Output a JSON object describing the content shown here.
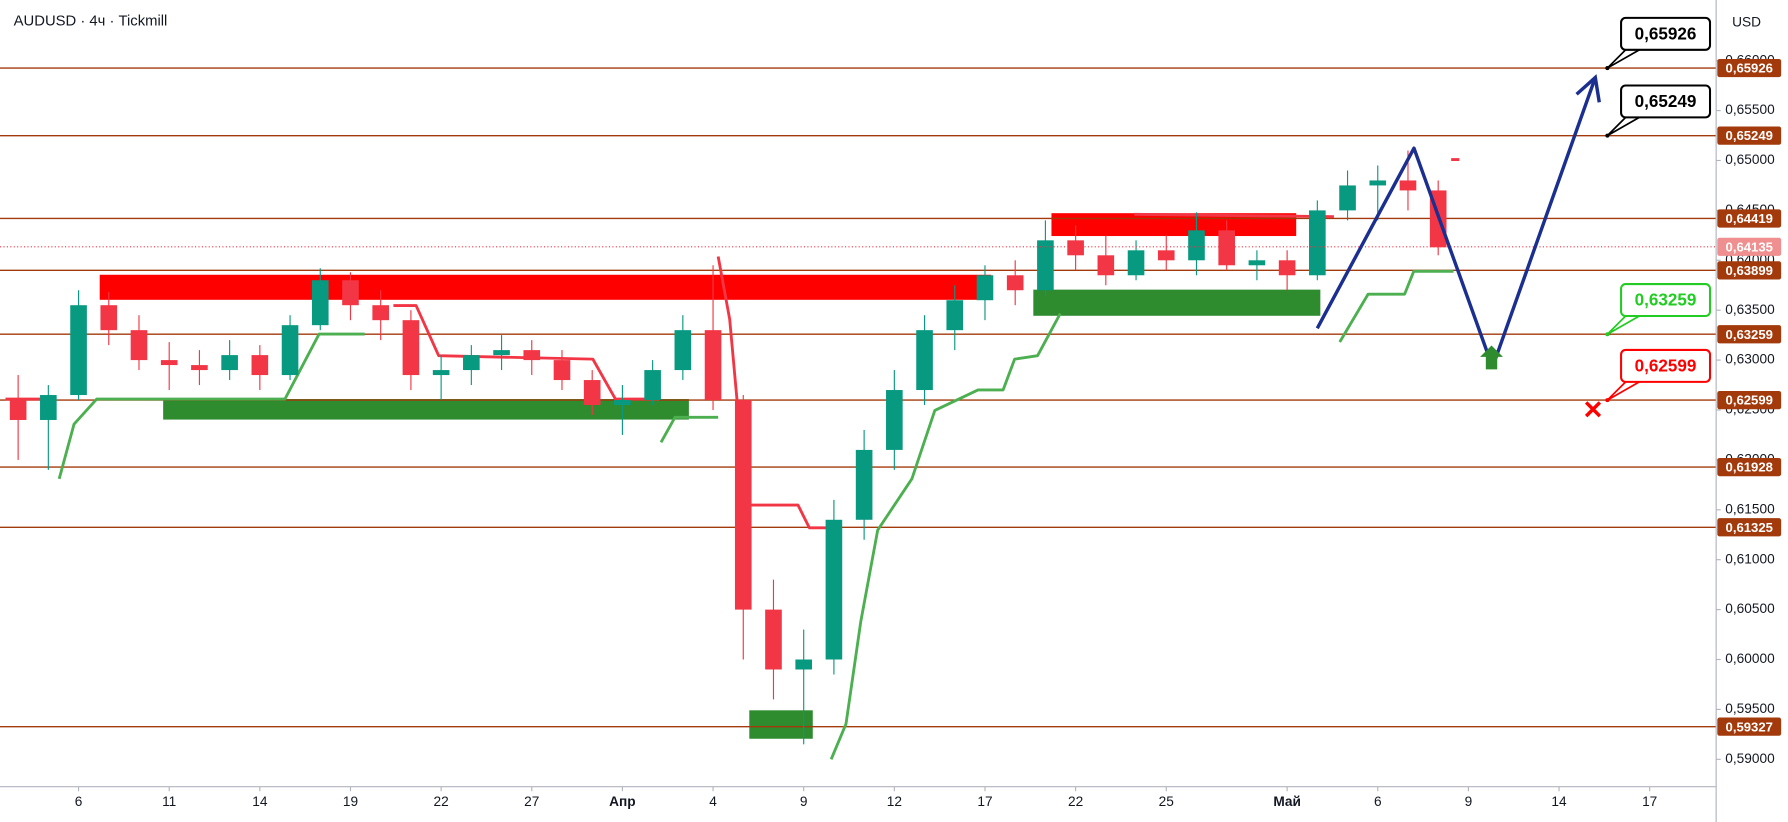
{
  "chart_data": {
    "type": "candlestick",
    "title": "AUDUSD · 4ч · Tickmill",
    "currency": "USD",
    "up_color": "#089981",
    "down_color": "#f23645",
    "x": [
      -2,
      -1,
      0,
      1,
      2,
      3,
      4,
      5,
      6,
      7,
      8,
      9,
      10,
      11,
      12,
      13,
      14,
      15,
      16,
      17,
      18,
      19,
      20,
      21,
      22,
      23,
      24,
      25,
      26,
      27,
      28,
      29,
      30,
      31,
      32,
      33,
      34,
      35,
      36,
      37,
      38,
      39,
      40,
      41,
      42,
      43,
      44,
      45
    ],
    "open": [
      0.6262,
      0.624,
      0.6265,
      0.6355,
      0.633,
      0.63,
      0.6295,
      0.629,
      0.6305,
      0.6285,
      0.6335,
      0.638,
      0.6355,
      0.634,
      0.6285,
      0.629,
      0.6305,
      0.631,
      0.63,
      0.628,
      0.6255,
      0.626,
      0.629,
      0.633,
      0.626,
      0.605,
      0.599,
      0.6,
      0.614,
      0.621,
      0.627,
      0.633,
      0.636,
      0.6385,
      0.637,
      0.642,
      0.6405,
      0.6385,
      0.641,
      0.64,
      0.643,
      0.6395,
      0.64,
      0.6385,
      0.645,
      0.6475,
      0.648,
      0.647
    ],
    "high": [
      0.6285,
      0.6275,
      0.637,
      0.6368,
      0.6345,
      0.6318,
      0.631,
      0.632,
      0.6315,
      0.6345,
      0.6392,
      0.6388,
      0.637,
      0.635,
      0.6305,
      0.6315,
      0.6325,
      0.632,
      0.631,
      0.629,
      0.6275,
      0.63,
      0.6345,
      0.6395,
      0.6265,
      0.608,
      0.603,
      0.616,
      0.623,
      0.629,
      0.6345,
      0.6375,
      0.6395,
      0.64,
      0.644,
      0.6435,
      0.6425,
      0.642,
      0.6425,
      0.6448,
      0.644,
      0.641,
      0.641,
      0.646,
      0.649,
      0.6495,
      0.651,
      0.648
    ],
    "low": [
      0.62,
      0.619,
      0.626,
      0.6315,
      0.629,
      0.627,
      0.6275,
      0.628,
      0.627,
      0.628,
      0.633,
      0.634,
      0.632,
      0.627,
      0.626,
      0.6275,
      0.629,
      0.6285,
      0.627,
      0.6245,
      0.6225,
      0.6255,
      0.628,
      0.625,
      0.6,
      0.596,
      0.5915,
      0.5985,
      0.612,
      0.619,
      0.6255,
      0.631,
      0.634,
      0.6355,
      0.6365,
      0.639,
      0.6375,
      0.638,
      0.639,
      0.6385,
      0.639,
      0.638,
      0.637,
      0.638,
      0.644,
      0.644,
      0.645,
      0.6405
    ],
    "close": [
      0.624,
      0.6265,
      0.6355,
      0.633,
      0.63,
      0.6295,
      0.629,
      0.6305,
      0.6285,
      0.6335,
      0.638,
      0.6355,
      0.634,
      0.6285,
      0.629,
      0.6305,
      0.631,
      0.63,
      0.628,
      0.6255,
      0.626,
      0.629,
      0.633,
      0.626,
      0.605,
      0.599,
      0.6,
      0.614,
      0.621,
      0.627,
      0.633,
      0.636,
      0.6385,
      0.637,
      0.642,
      0.6405,
      0.6385,
      0.641,
      0.64,
      0.643,
      0.6395,
      0.64,
      0.6385,
      0.645,
      0.6475,
      0.648,
      0.647,
      0.6413
    ],
    "xlim": [
      -2.6,
      54.2
    ],
    "xticks": [
      {
        "value": 0,
        "label": "6"
      },
      {
        "value": 3,
        "label": "11"
      },
      {
        "value": 6,
        "label": "14"
      },
      {
        "value": 9,
        "label": "19"
      },
      {
        "value": 12,
        "label": "22"
      },
      {
        "value": 15,
        "label": "27"
      },
      {
        "value": 18,
        "label": "Апр"
      },
      {
        "value": 21,
        "label": "4"
      },
      {
        "value": 24,
        "label": "9"
      },
      {
        "value": 27,
        "label": "12"
      },
      {
        "value": 30,
        "label": "17"
      },
      {
        "value": 33,
        "label": "22"
      },
      {
        "value": 36,
        "label": "25"
      },
      {
        "value": 40,
        "label": "Май"
      },
      {
        "value": 43,
        "label": "6"
      },
      {
        "value": 46,
        "label": "9"
      },
      {
        "value": 49,
        "label": "14"
      },
      {
        "value": 52,
        "label": "17"
      }
    ],
    "ylim": [
      0.58726,
      0.66608
    ],
    "yticks": [
      {
        "value": 0.59,
        "label": "0,59000"
      },
      {
        "value": 0.595,
        "label": "0,59500"
      },
      {
        "value": 0.6,
        "label": "0,60000"
      },
      {
        "value": 0.605,
        "label": "0,60500"
      },
      {
        "value": 0.61,
        "label": "0,61000"
      },
      {
        "value": 0.615,
        "label": "0,61500"
      },
      {
        "value": 0.62,
        "label": "0,62000"
      },
      {
        "value": 0.625,
        "label": "0,62500"
      },
      {
        "value": 0.63,
        "label": "0,63000"
      },
      {
        "value": 0.635,
        "label": "0,63500"
      },
      {
        "value": 0.64,
        "label": "0,64000"
      },
      {
        "value": 0.645,
        "label": "0,64500"
      },
      {
        "value": 0.65,
        "label": "0,65000"
      },
      {
        "value": 0.655,
        "label": "0,65500"
      },
      {
        "value": 0.66,
        "label": "0,66000"
      }
    ],
    "levels": {
      "color": "#a33a0c",
      "lines": [
        {
          "value": 0.65926,
          "label": "0,65926"
        },
        {
          "value": 0.65249,
          "label": "0,65249"
        },
        {
          "value": 0.64419,
          "label": "0,64419"
        },
        {
          "value": 0.63899,
          "label": "0,63899"
        },
        {
          "value": 0.63259,
          "label": "0,63259"
        },
        {
          "value": 0.62599,
          "label": "0,62599"
        },
        {
          "value": 0.61928,
          "label": "0,61928"
        },
        {
          "value": 0.61325,
          "label": "0,61325"
        },
        {
          "value": 0.59327,
          "label": "0,59327"
        }
      ]
    },
    "current_price": {
      "value": 0.64135,
      "label": "0,64135",
      "color": "#ef8f8f"
    },
    "zones": [
      {
        "color": "#ff0000",
        "x": [
          0.7,
          30.2
        ],
        "y": [
          0.63604,
          0.63855
        ]
      },
      {
        "color": "#ff0000",
        "x": [
          32.2,
          40.3
        ],
        "y": [
          0.64243,
          0.64472
        ]
      },
      {
        "color": "#2e8b2e",
        "x": [
          2.8,
          20.2
        ],
        "y": [
          0.62404,
          0.6261
        ]
      },
      {
        "color": "#2e8b2e",
        "x": [
          22.2,
          24.3
        ],
        "y": [
          0.59206,
          0.59491
        ]
      },
      {
        "color": "#2e8b2e",
        "x": [
          31.6,
          41.1
        ],
        "y": [
          0.63444,
          0.63706
        ]
      }
    ],
    "supertrend": [
      {
        "color": "#4caf50",
        "x": [
          -0.64,
          -0.15,
          0.6,
          6.83,
          7.96,
          9.47,
          null,
          19.28,
          19.74,
          21.17,
          null,
          24.91,
          25.4,
          25.89,
          26.45,
          27.58,
          28.34,
          29.77,
          30.6,
          30.98,
          31.74,
          32.49,
          null,
          41.74,
          42.68,
          43.89,
          44.19,
          45.51
        ],
        "values": [
          0.6181,
          0.62358,
          0.6261,
          0.6261,
          0.63261,
          0.63261,
          null,
          0.62176,
          0.62427,
          0.62427,
          null,
          0.59,
          0.59354,
          0.60382,
          0.61296,
          0.6181,
          0.62496,
          0.62701,
          0.62701,
          0.6301,
          0.63044,
          0.63467,
          null,
          0.63181,
          0.63661,
          0.63661,
          0.63889,
          0.63889
        ]
      },
      {
        "color": "#f23645",
        "x": [
          -2.42,
          -0.91,
          null,
          10.42,
          11.17,
          11.92,
          17.02,
          17.77,
          19.21,
          null,
          21.17,
          21.55,
          22.11,
          23.81,
          24.19,
          24.87,
          null,
          34.94,
          41.55,
          null,
          45.43,
          45.7
        ],
        "values": [
          0.6261,
          0.6261,
          null,
          0.63547,
          0.63547,
          0.63044,
          0.6301,
          0.6261,
          0.6261,
          null,
          0.64038,
          0.63409,
          0.61547,
          0.61547,
          0.61319,
          0.61319,
          null,
          0.6446,
          0.64438,
          null,
          0.65009,
          0.65009
        ]
      }
    ],
    "projection": {
      "color": "#1a2f8f",
      "x": [
        41.0,
        44.2,
        46.8,
        50.2
      ],
      "values": [
        0.63318,
        0.65123,
        0.6293,
        0.65831
      ]
    },
    "callouts": [
      {
        "text": "0,65926",
        "value": 0.65926,
        "x": 50.6,
        "color": "#000000"
      },
      {
        "text": "0,65249",
        "value": 0.65249,
        "x": 50.6,
        "color": "#000000"
      },
      {
        "text": "0,63259",
        "value": 0.63259,
        "x": 50.6,
        "color": "#22cc22"
      },
      {
        "text": "0,62599",
        "value": 0.62599,
        "x": 50.6,
        "color": "#ff0000"
      }
    ]
  }
}
